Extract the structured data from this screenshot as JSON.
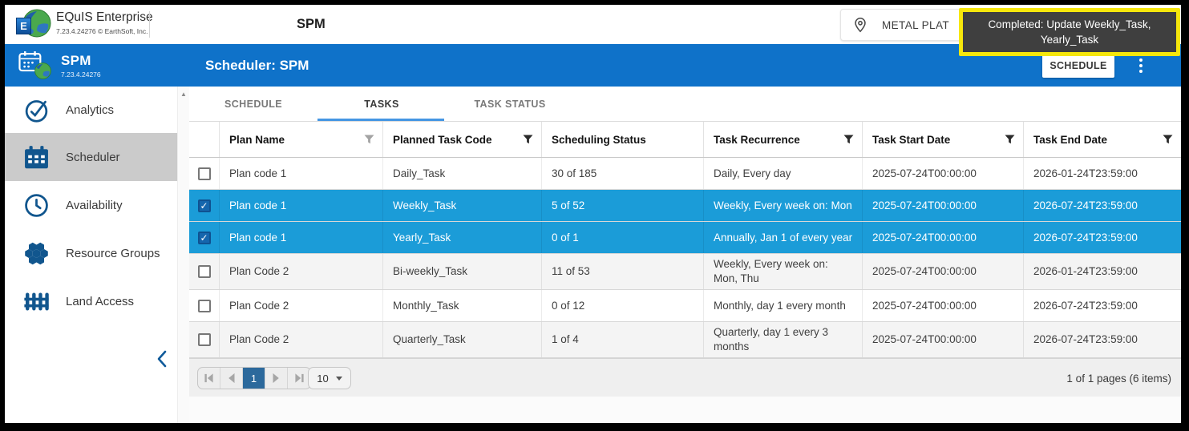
{
  "topbar": {
    "brand_name": "EQuIS Enterprise",
    "brand_version": "7.23.4.24276 © EarthSoft, Inc.",
    "title": "SPM",
    "facility_button_label": "METAL PLAT",
    "toast": {
      "line1": "Completed: Update Weekly_Task,",
      "line2": "Yearly_Task"
    }
  },
  "sidebar": {
    "app_name": "SPM",
    "app_version": "7.23.4.24276",
    "items": [
      {
        "label": "Analytics",
        "icon": "check-circle",
        "active": false
      },
      {
        "label": "Scheduler",
        "icon": "calendar",
        "active": true
      },
      {
        "label": "Availability",
        "icon": "clock",
        "active": false
      },
      {
        "label": "Resource Groups",
        "icon": "hexagons",
        "active": false
      },
      {
        "label": "Land Access",
        "icon": "fence",
        "active": false
      }
    ]
  },
  "main": {
    "header_title": "Scheduler: SPM",
    "schedule_button_label": "SCHEDULE",
    "tabs": [
      {
        "label": "SCHEDULE",
        "active": false
      },
      {
        "label": "TASKS",
        "active": true
      },
      {
        "label": "TASK STATUS",
        "active": false
      }
    ],
    "grid": {
      "columns": [
        {
          "label": "Plan Name",
          "filter": "inactive"
        },
        {
          "label": "Planned Task Code",
          "filter": "active"
        },
        {
          "label": "Scheduling Status",
          "filter": null
        },
        {
          "label": "Task Recurrence",
          "filter": "active"
        },
        {
          "label": "Task Start Date",
          "filter": "active"
        },
        {
          "label": "Task End Date",
          "filter": "active"
        }
      ],
      "rows": [
        {
          "checked": false,
          "selected": false,
          "plan_name": "Plan code 1",
          "task_code": "Daily_Task",
          "status": "30 of 185",
          "recurrence": "Daily, Every day",
          "start": "2025-07-24T00:00:00",
          "end": "2026-01-24T23:59:00"
        },
        {
          "checked": true,
          "selected": true,
          "plan_name": "Plan code 1",
          "task_code": "Weekly_Task",
          "status": "5 of 52",
          "recurrence": "Weekly, Every week on: Mon",
          "start": "2025-07-24T00:00:00",
          "end": "2026-07-24T23:59:00"
        },
        {
          "checked": true,
          "selected": true,
          "plan_name": "Plan code 1",
          "task_code": "Yearly_Task",
          "status": "0 of 1",
          "recurrence": "Annually, Jan 1 of every year",
          "start": "2025-07-24T00:00:00",
          "end": "2026-07-24T23:59:00"
        },
        {
          "checked": false,
          "selected": false,
          "plan_name": "Plan Code 2",
          "task_code": "Bi-weekly_Task",
          "status": "11 of 53",
          "recurrence": "Weekly, Every week on: Mon, Thu",
          "start": "2025-07-24T00:00:00",
          "end": "2026-01-24T23:59:00"
        },
        {
          "checked": false,
          "selected": false,
          "plan_name": "Plan Code 2",
          "task_code": "Monthly_Task",
          "status": "0 of 12",
          "recurrence": "Monthly, day 1 every month",
          "start": "2025-07-24T00:00:00",
          "end": "2026-07-24T23:59:00"
        },
        {
          "checked": false,
          "selected": false,
          "plan_name": "Plan Code 2",
          "task_code": "Quarterly_Task",
          "status": "1 of 4",
          "recurrence": "Quarterly, day 1 every 3 months",
          "start": "2025-07-24T00:00:00",
          "end": "2026-07-24T23:59:00"
        }
      ]
    },
    "pager": {
      "current_page": "1",
      "page_size": "10",
      "summary": "1 of 1 pages (6 items)"
    }
  },
  "colors": {
    "header_blue": "#0f72c9",
    "selected_row_blue": "#1b9cd8",
    "sidebar_icon_blue": "#11568e",
    "active_item_gray": "#cbcbcb",
    "pager_page_blue": "#2c699c",
    "tab_underline_blue": "#4596e3",
    "toast_border_yellow": "#f6e70c",
    "toast_background": "#3f3f3f"
  }
}
